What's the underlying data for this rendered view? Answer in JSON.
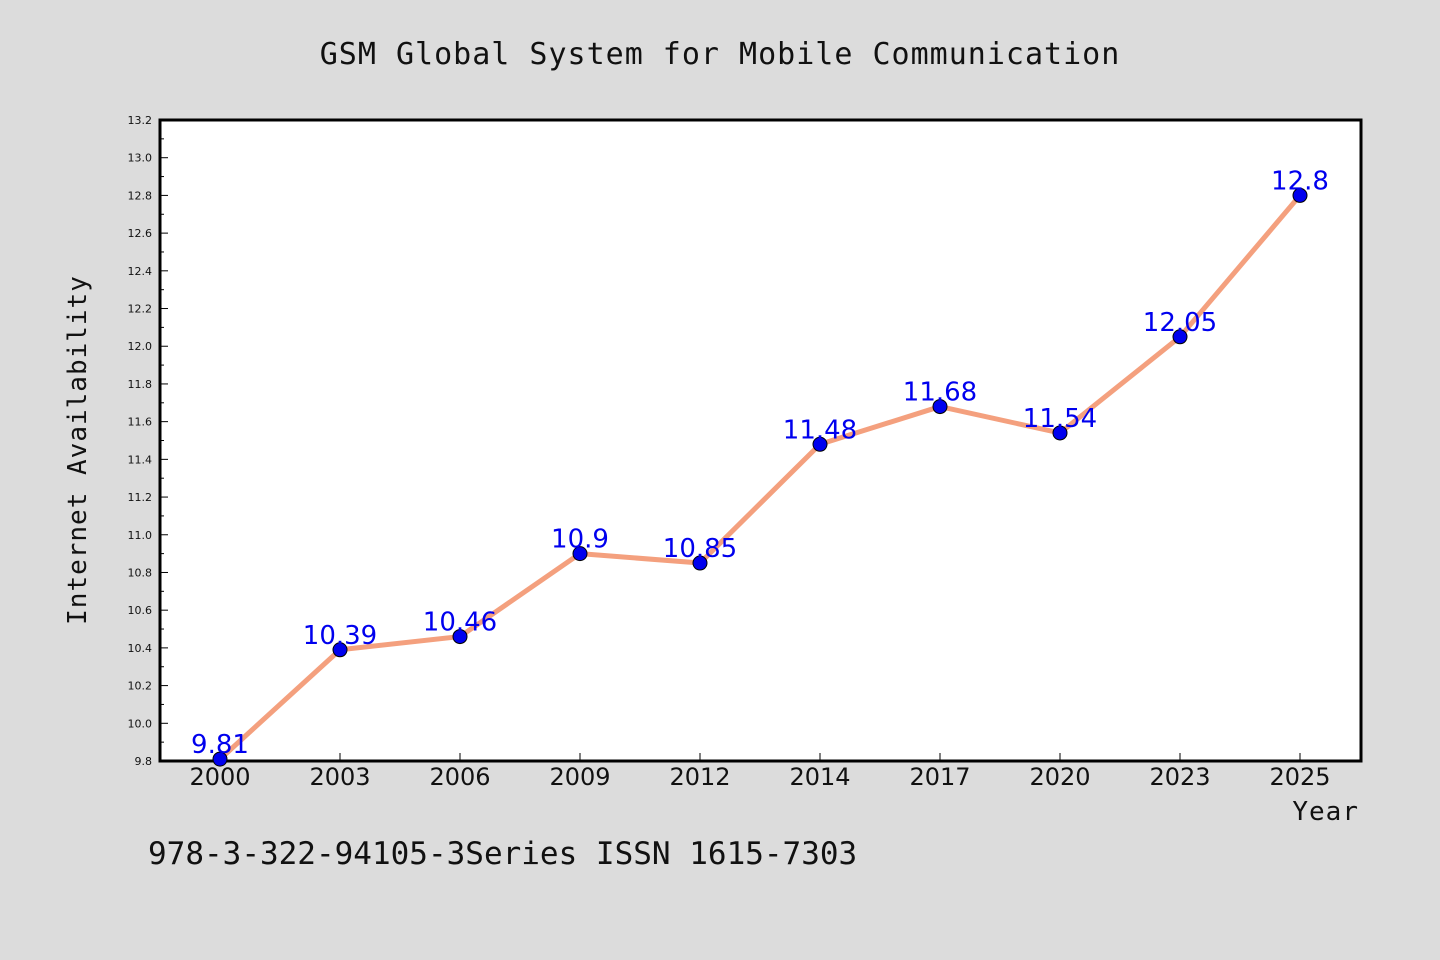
{
  "chart_data": {
    "type": "line",
    "title": "GSM Global System for Mobile Communication",
    "xlabel": "Year",
    "ylabel": "Internet Availability",
    "categories": [
      "2000",
      "2003",
      "2006",
      "2009",
      "2012",
      "2014",
      "2017",
      "2020",
      "2023",
      "2025"
    ],
    "values": [
      9.81,
      10.39,
      10.46,
      10.9,
      10.85,
      11.48,
      11.68,
      11.54,
      12.05,
      12.8
    ],
    "data_labels": [
      "9.81",
      "10.39",
      "10.46",
      "10.9",
      "10.85",
      "11.48",
      "11.68",
      "11.54",
      "12.05",
      "12.8"
    ],
    "ylim": [
      9.8,
      13.2
    ],
    "yticks": [
      "9.8",
      "10.0",
      "10.2",
      "10.4",
      "10.6",
      "10.8",
      "11.0",
      "11.2",
      "11.4",
      "11.6",
      "11.8",
      "12.0",
      "12.2",
      "12.4",
      "12.6",
      "12.8",
      "13.0",
      "13.2"
    ],
    "grid": false,
    "line_color": "#f4a07e",
    "marker_color": "#0000ee",
    "label_color": "#0000ee"
  },
  "footer": "978-3-322-94105-3Series ISSN 1615-7303"
}
